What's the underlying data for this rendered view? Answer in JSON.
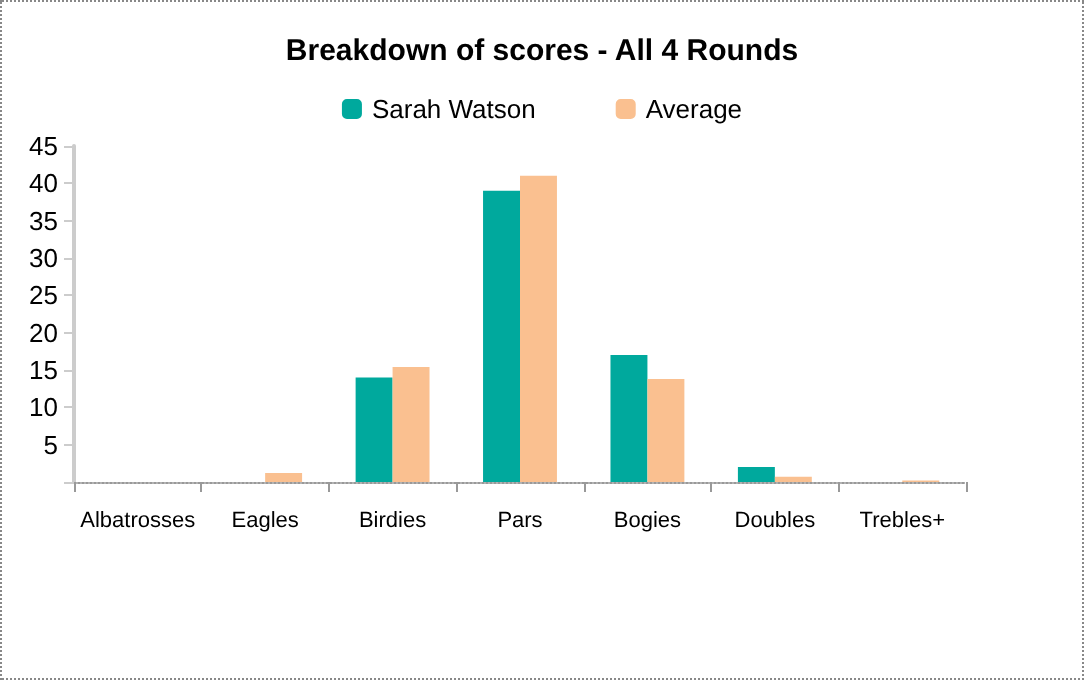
{
  "chart_data": {
    "type": "bar",
    "title": "Breakdown of scores - All 4 Rounds",
    "categories": [
      "Albatrosses",
      "Eagles",
      "Birdies",
      "Pars",
      "Bogies",
      "Doubles",
      "Trebles+"
    ],
    "series": [
      {
        "name": "Sarah Watson",
        "color": "#00a99d",
        "values": [
          0,
          0,
          14,
          39,
          17,
          2,
          0
        ]
      },
      {
        "name": "Average",
        "color": "#fac090",
        "values": [
          0,
          1.2,
          15.4,
          41,
          13.8,
          0.7,
          0.2
        ]
      }
    ],
    "ylim": [
      0,
      45
    ],
    "yticks": [
      {
        "value": 0,
        "label": null
      },
      5,
      10,
      15,
      20,
      25,
      30,
      35,
      40,
      45
    ],
    "grid": false,
    "legend": "top"
  }
}
